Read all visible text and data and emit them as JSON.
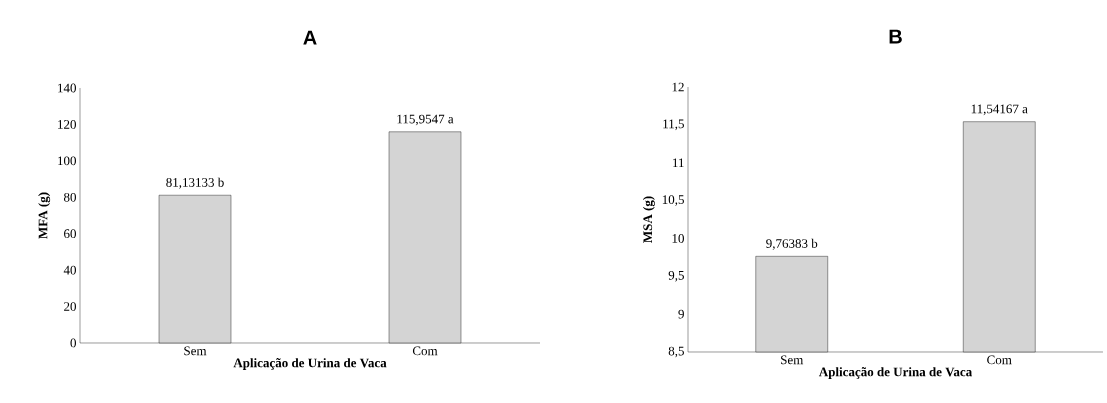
{
  "chart_data": [
    {
      "type": "bar",
      "title": "A",
      "xlabel": "Aplicação de Urina de Vaca",
      "ylabel": "MFA (g)",
      "categories": [
        "Sem",
        "Com"
      ],
      "values": [
        81.13133,
        115.9547
      ],
      "value_labels": [
        "81,13133 b",
        "115,9547 a"
      ],
      "color": "#d4d4d4",
      "ylim": [
        0,
        140
      ],
      "yticks": [
        0,
        20,
        40,
        60,
        80,
        100,
        120,
        140
      ]
    },
    {
      "type": "bar",
      "title": "B",
      "xlabel": "Aplicação de Urina de Vaca",
      "ylabel": "MSA (g)",
      "categories": [
        "Sem",
        "Com"
      ],
      "values": [
        9.76383,
        11.54167
      ],
      "value_labels": [
        "9,76383 b",
        "11,54167 a"
      ],
      "color": "#d4d4d4",
      "ylim": [
        8.5,
        12
      ],
      "yticks": [
        {
          "value": 8.5,
          "label": "8,5"
        },
        9,
        {
          "value": 9.5,
          "label": "9,5"
        },
        10,
        {
          "value": 10.5,
          "label": "10,5"
        },
        11,
        {
          "value": 11.5,
          "label": "11,5"
        },
        12
      ]
    }
  ]
}
